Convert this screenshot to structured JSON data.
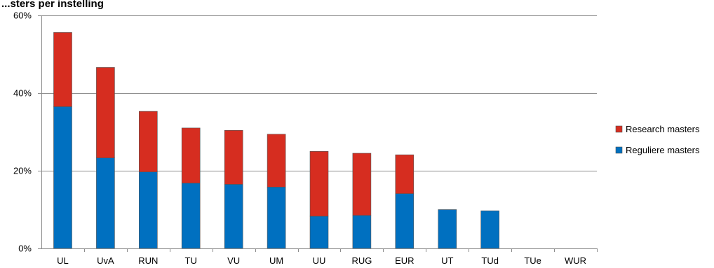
{
  "chart_data": {
    "type": "bar",
    "stacked": true,
    "title": "...sters per instelling",
    "categories": [
      "UL",
      "UvA",
      "RUN",
      "TU",
      "VU",
      "UM",
      "UU",
      "RUG",
      "EUR",
      "UT",
      "TUd",
      "TUe",
      "WUR"
    ],
    "series": [
      {
        "name": "Reguliere masters",
        "color": "#0070C0",
        "values": [
          36.5,
          23.3,
          19.7,
          16.8,
          16.5,
          15.8,
          8.3,
          8.5,
          14.1,
          10.0,
          9.7,
          0,
          0
        ]
      },
      {
        "name": "Research masters",
        "color": "#D62D20",
        "values": [
          19.1,
          23.3,
          15.6,
          14.2,
          13.9,
          13.6,
          16.7,
          16.0,
          10.0,
          0,
          0,
          0,
          0
        ]
      }
    ],
    "yticks": [
      "0%",
      "20%",
      "40%",
      "60%"
    ],
    "ylim": [
      0,
      60
    ],
    "grid": true,
    "legend_position": "right"
  }
}
